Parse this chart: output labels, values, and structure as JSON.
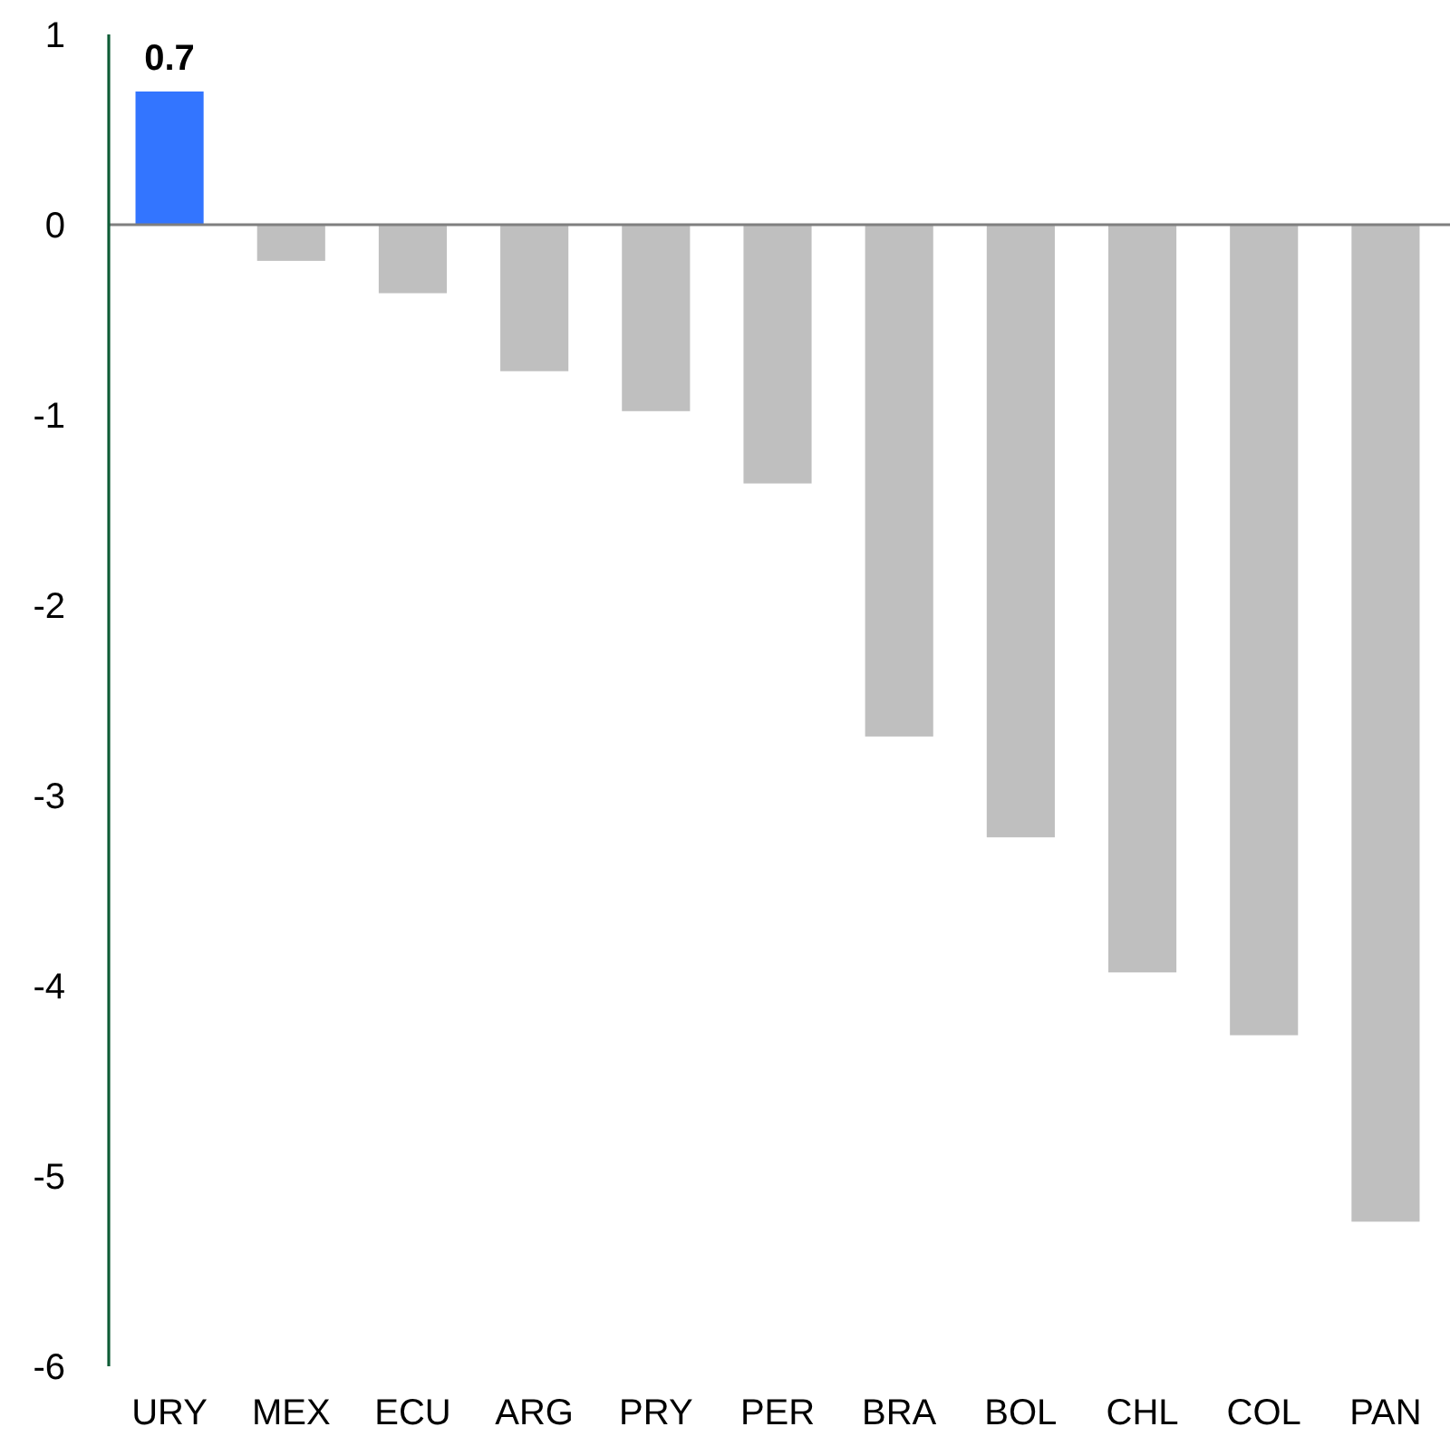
{
  "chart_data": {
    "type": "bar",
    "categories": [
      "URY",
      "MEX",
      "ECU",
      "ARG",
      "PRY",
      "PER",
      "BRA",
      "BOL",
      "CHL",
      "COL",
      "PAN"
    ],
    "values": [
      0.7,
      -0.19,
      -0.36,
      -0.77,
      -0.98,
      -1.36,
      -2.69,
      -3.22,
      -3.93,
      -4.26,
      -5.24
    ],
    "colors": [
      "#3375ff",
      "#bfbfbf",
      "#bfbfbf",
      "#bfbfbf",
      "#bfbfbf",
      "#bfbfbf",
      "#bfbfbf",
      "#bfbfbf",
      "#bfbfbf",
      "#bfbfbf",
      "#bfbfbf"
    ],
    "value_labels": [
      "0.7",
      null,
      null,
      null,
      null,
      null,
      null,
      null,
      null,
      null,
      null
    ],
    "ylim": [
      -6,
      1
    ],
    "yticks": [
      -6,
      -5,
      -4,
      -3,
      -2,
      -1,
      0,
      1
    ]
  }
}
